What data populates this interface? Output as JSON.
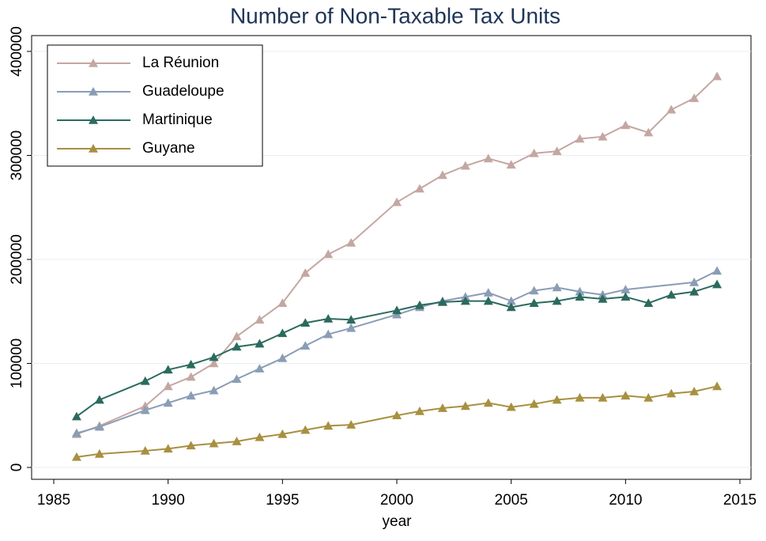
{
  "chart_data": {
    "type": "line",
    "title": "Number of Non-Taxable Tax Units",
    "x_label": "year",
    "xlim": [
      1985,
      2015
    ],
    "xticks": [
      1985,
      1990,
      1995,
      2000,
      2005,
      2010,
      2015
    ],
    "ylim": [
      0,
      400000
    ],
    "yticks": [
      0,
      100000,
      200000,
      300000,
      400000
    ],
    "grid": true,
    "legend": "top-left",
    "series": [
      {
        "name": "La Réunion",
        "color": "#c4a7a2",
        "x": [
          1986,
          1987,
          1989,
          1990,
          1991,
          1992,
          1993,
          1994,
          1995,
          1996,
          1997,
          1998,
          2000,
          2001,
          2002,
          2003,
          2004,
          2005,
          2006,
          2007,
          2008,
          2009,
          2010,
          2011,
          2012,
          2013,
          2014
        ],
        "values": [
          32000,
          40000,
          59000,
          78000,
          87000,
          100000,
          126000,
          142000,
          158000,
          187000,
          205000,
          216000,
          255000,
          268000,
          281000,
          290000,
          297000,
          291000,
          302000,
          304000,
          316000,
          318000,
          329000,
          322000,
          344000,
          355000,
          376000
        ]
      },
      {
        "name": "Guadeloupe",
        "color": "#8a9db5",
        "x": [
          1986,
          1987,
          1989,
          1990,
          1991,
          1992,
          1993,
          1994,
          1995,
          1996,
          1997,
          1998,
          2000,
          2001,
          2002,
          2003,
          2004,
          2005,
          2006,
          2007,
          2008,
          2009,
          2010,
          2013,
          2014
        ],
        "values": [
          33000,
          39000,
          55000,
          62000,
          69000,
          74000,
          85000,
          95000,
          105000,
          117000,
          128000,
          134000,
          147000,
          154000,
          160000,
          164000,
          168000,
          160000,
          170000,
          173000,
          169000,
          166000,
          171000,
          178000,
          189000
        ]
      },
      {
        "name": "Martinique",
        "color": "#2b6b5e",
        "x": [
          1986,
          1987,
          1989,
          1990,
          1991,
          1992,
          1993,
          1994,
          1995,
          1996,
          1997,
          1998,
          2000,
          2001,
          2002,
          2003,
          2004,
          2005,
          2006,
          2007,
          2008,
          2009,
          2010,
          2011,
          2012,
          2013,
          2014
        ],
        "values": [
          49000,
          65000,
          83000,
          94000,
          99000,
          106000,
          116000,
          119000,
          129000,
          139000,
          143000,
          142000,
          151000,
          156000,
          159000,
          160000,
          160000,
          154000,
          158000,
          160000,
          164000,
          162000,
          164000,
          158000,
          166000,
          169000,
          176000
        ]
      },
      {
        "name": "Guyane",
        "color": "#a89040",
        "x": [
          1986,
          1987,
          1989,
          1990,
          1991,
          1992,
          1993,
          1994,
          1995,
          1996,
          1997,
          1998,
          2000,
          2001,
          2002,
          2003,
          2004,
          2005,
          2006,
          2007,
          2008,
          2009,
          2010,
          2011,
          2012,
          2013,
          2014
        ],
        "values": [
          10000,
          13000,
          16000,
          18000,
          21000,
          23000,
          25000,
          29000,
          32000,
          36000,
          40000,
          41000,
          50000,
          54000,
          57000,
          59000,
          62000,
          58000,
          61000,
          65000,
          67000,
          67000,
          69000,
          67000,
          71000,
          73000,
          78000
        ]
      }
    ]
  }
}
